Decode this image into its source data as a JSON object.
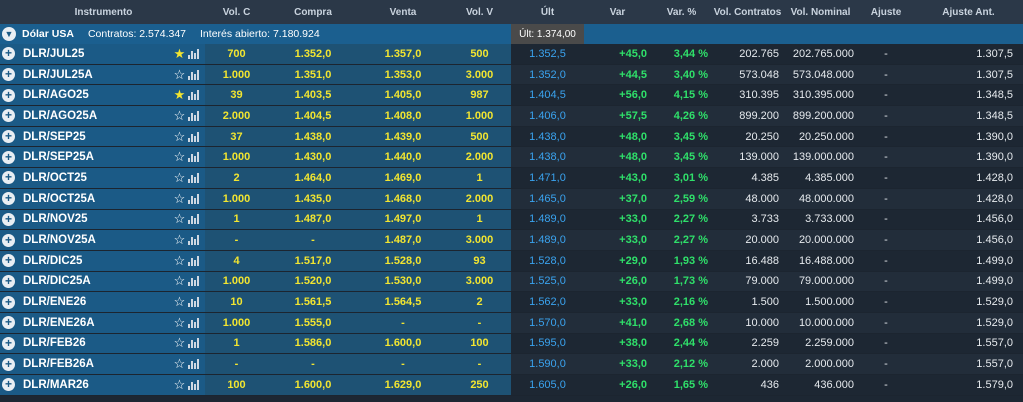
{
  "headers": {
    "instrumento": "Instrumento",
    "volc": "Vol. C",
    "compra": "Compra",
    "venta": "Venta",
    "volv": "Vol. V",
    "ult": "Últ",
    "var": "Var",
    "varp": "Var. %",
    "volcont": "Vol. Contratos",
    "volnom": "Vol. Nominal",
    "ajuste": "Ajuste",
    "ajusteant": "Ajuste Ant."
  },
  "group": {
    "name": "Dólar USA",
    "contratos": "Contratos: 2.574.347",
    "interes": "Interés abierto: 7.180.924",
    "ult": "Últ: 1.374,00"
  },
  "icons": {
    "expand": "plus-circle-icon",
    "collapse": "chevron-down-icon",
    "favorite": "star-icon",
    "chart": "bar-chart-icon"
  },
  "colors": {
    "bid_ask": "#f2e530",
    "last": "#3aa3ef",
    "change_up": "#2fe06a",
    "instrument_bg": "#1b5a86"
  },
  "rows": [
    {
      "name": "DLR/JUL25",
      "fav": true,
      "volc": "700",
      "compra": "1.352,0",
      "venta": "1.357,0",
      "volv": "500",
      "ult": "1.352,5",
      "var": "+45,0",
      "varp": "3,44 %",
      "volcont": "202.765",
      "volnom": "202.765.000",
      "ajuste": "-",
      "ajusteant": "1.307,5"
    },
    {
      "name": "DLR/JUL25A",
      "fav": false,
      "volc": "1.000",
      "compra": "1.351,0",
      "venta": "1.353,0",
      "volv": "3.000",
      "ult": "1.352,0",
      "var": "+44,5",
      "varp": "3,40 %",
      "volcont": "573.048",
      "volnom": "573.048.000",
      "ajuste": "-",
      "ajusteant": "1.307,5"
    },
    {
      "name": "DLR/AGO25",
      "fav": true,
      "volc": "39",
      "compra": "1.403,5",
      "venta": "1.405,0",
      "volv": "987",
      "ult": "1.404,5",
      "var": "+56,0",
      "varp": "4,15 %",
      "volcont": "310.395",
      "volnom": "310.395.000",
      "ajuste": "-",
      "ajusteant": "1.348,5"
    },
    {
      "name": "DLR/AGO25A",
      "fav": false,
      "volc": "2.000",
      "compra": "1.404,5",
      "venta": "1.408,0",
      "volv": "1.000",
      "ult": "1.406,0",
      "var": "+57,5",
      "varp": "4,26 %",
      "volcont": "899.200",
      "volnom": "899.200.000",
      "ajuste": "-",
      "ajusteant": "1.348,5"
    },
    {
      "name": "DLR/SEP25",
      "fav": false,
      "volc": "37",
      "compra": "1.438,0",
      "venta": "1.439,0",
      "volv": "500",
      "ult": "1.438,0",
      "var": "+48,0",
      "varp": "3,45 %",
      "volcont": "20.250",
      "volnom": "20.250.000",
      "ajuste": "-",
      "ajusteant": "1.390,0"
    },
    {
      "name": "DLR/SEP25A",
      "fav": false,
      "volc": "1.000",
      "compra": "1.430,0",
      "venta": "1.440,0",
      "volv": "2.000",
      "ult": "1.438,0",
      "var": "+48,0",
      "varp": "3,45 %",
      "volcont": "139.000",
      "volnom": "139.000.000",
      "ajuste": "-",
      "ajusteant": "1.390,0"
    },
    {
      "name": "DLR/OCT25",
      "fav": false,
      "volc": "2",
      "compra": "1.464,0",
      "venta": "1.469,0",
      "volv": "1",
      "ult": "1.471,0",
      "var": "+43,0",
      "varp": "3,01 %",
      "volcont": "4.385",
      "volnom": "4.385.000",
      "ajuste": "-",
      "ajusteant": "1.428,0"
    },
    {
      "name": "DLR/OCT25A",
      "fav": false,
      "volc": "1.000",
      "compra": "1.435,0",
      "venta": "1.468,0",
      "volv": "2.000",
      "ult": "1.465,0",
      "var": "+37,0",
      "varp": "2,59 %",
      "volcont": "48.000",
      "volnom": "48.000.000",
      "ajuste": "-",
      "ajusteant": "1.428,0"
    },
    {
      "name": "DLR/NOV25",
      "fav": false,
      "volc": "1",
      "compra": "1.487,0",
      "venta": "1.497,0",
      "volv": "1",
      "ult": "1.489,0",
      "var": "+33,0",
      "varp": "2,27 %",
      "volcont": "3.733",
      "volnom": "3.733.000",
      "ajuste": "-",
      "ajusteant": "1.456,0"
    },
    {
      "name": "DLR/NOV25A",
      "fav": false,
      "volc": "-",
      "compra": "-",
      "venta": "1.487,0",
      "volv": "3.000",
      "ult": "1.489,0",
      "var": "+33,0",
      "varp": "2,27 %",
      "volcont": "20.000",
      "volnom": "20.000.000",
      "ajuste": "-",
      "ajusteant": "1.456,0"
    },
    {
      "name": "DLR/DIC25",
      "fav": false,
      "volc": "4",
      "compra": "1.517,0",
      "venta": "1.528,0",
      "volv": "93",
      "ult": "1.528,0",
      "var": "+29,0",
      "varp": "1,93 %",
      "volcont": "16.488",
      "volnom": "16.488.000",
      "ajuste": "-",
      "ajusteant": "1.499,0"
    },
    {
      "name": "DLR/DIC25A",
      "fav": false,
      "volc": "1.000",
      "compra": "1.520,0",
      "venta": "1.530,0",
      "volv": "3.000",
      "ult": "1.525,0",
      "var": "+26,0",
      "varp": "1,73 %",
      "volcont": "79.000",
      "volnom": "79.000.000",
      "ajuste": "-",
      "ajusteant": "1.499,0"
    },
    {
      "name": "DLR/ENE26",
      "fav": false,
      "volc": "10",
      "compra": "1.561,5",
      "venta": "1.564,5",
      "volv": "2",
      "ult": "1.562,0",
      "var": "+33,0",
      "varp": "2,16 %",
      "volcont": "1.500",
      "volnom": "1.500.000",
      "ajuste": "-",
      "ajusteant": "1.529,0"
    },
    {
      "name": "DLR/ENE26A",
      "fav": false,
      "volc": "1.000",
      "compra": "1.555,0",
      "venta": "-",
      "volv": "-",
      "ult": "1.570,0",
      "var": "+41,0",
      "varp": "2,68 %",
      "volcont": "10.000",
      "volnom": "10.000.000",
      "ajuste": "-",
      "ajusteant": "1.529,0"
    },
    {
      "name": "DLR/FEB26",
      "fav": false,
      "volc": "1",
      "compra": "1.586,0",
      "venta": "1.600,0",
      "volv": "100",
      "ult": "1.595,0",
      "var": "+38,0",
      "varp": "2,44 %",
      "volcont": "2.259",
      "volnom": "2.259.000",
      "ajuste": "-",
      "ajusteant": "1.557,0"
    },
    {
      "name": "DLR/FEB26A",
      "fav": false,
      "volc": "-",
      "compra": "-",
      "venta": "-",
      "volv": "-",
      "ult": "1.590,0",
      "var": "+33,0",
      "varp": "2,12 %",
      "volcont": "2.000",
      "volnom": "2.000.000",
      "ajuste": "-",
      "ajusteant": "1.557,0"
    },
    {
      "name": "DLR/MAR26",
      "fav": false,
      "volc": "100",
      "compra": "1.600,0",
      "venta": "1.629,0",
      "volv": "250",
      "ult": "1.605,0",
      "var": "+26,0",
      "varp": "1,65 %",
      "volcont": "436",
      "volnom": "436.000",
      "ajuste": "-",
      "ajusteant": "1.579,0"
    }
  ]
}
